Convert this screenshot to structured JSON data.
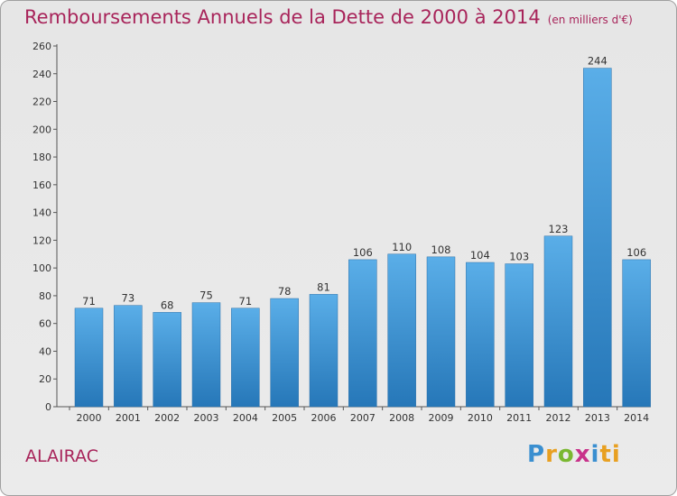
{
  "chart_data": {
    "type": "bar",
    "title": "Remboursements Annuels de la Dette de 2000 à 2014",
    "subtitle": "(en milliers d'€)",
    "categories": [
      "2000",
      "2001",
      "2002",
      "2003",
      "2004",
      "2005",
      "2006",
      "2007",
      "2008",
      "2009",
      "2010",
      "2011",
      "2012",
      "2013",
      "2014"
    ],
    "values": [
      71,
      73,
      68,
      75,
      71,
      78,
      81,
      106,
      110,
      108,
      104,
      103,
      123,
      244,
      106
    ],
    "xlabel": "",
    "ylabel": "",
    "ylim": [
      0,
      260
    ],
    "yticks": [
      0,
      20,
      40,
      60,
      80,
      100,
      120,
      140,
      160,
      180,
      200,
      220,
      240,
      260
    ],
    "grid": false,
    "bar_color": "#3b8fd4"
  },
  "footer": {
    "commune": "ALAIRAC",
    "logo_letters": [
      "P",
      "r",
      "o",
      "x",
      "i",
      "ti"
    ]
  }
}
